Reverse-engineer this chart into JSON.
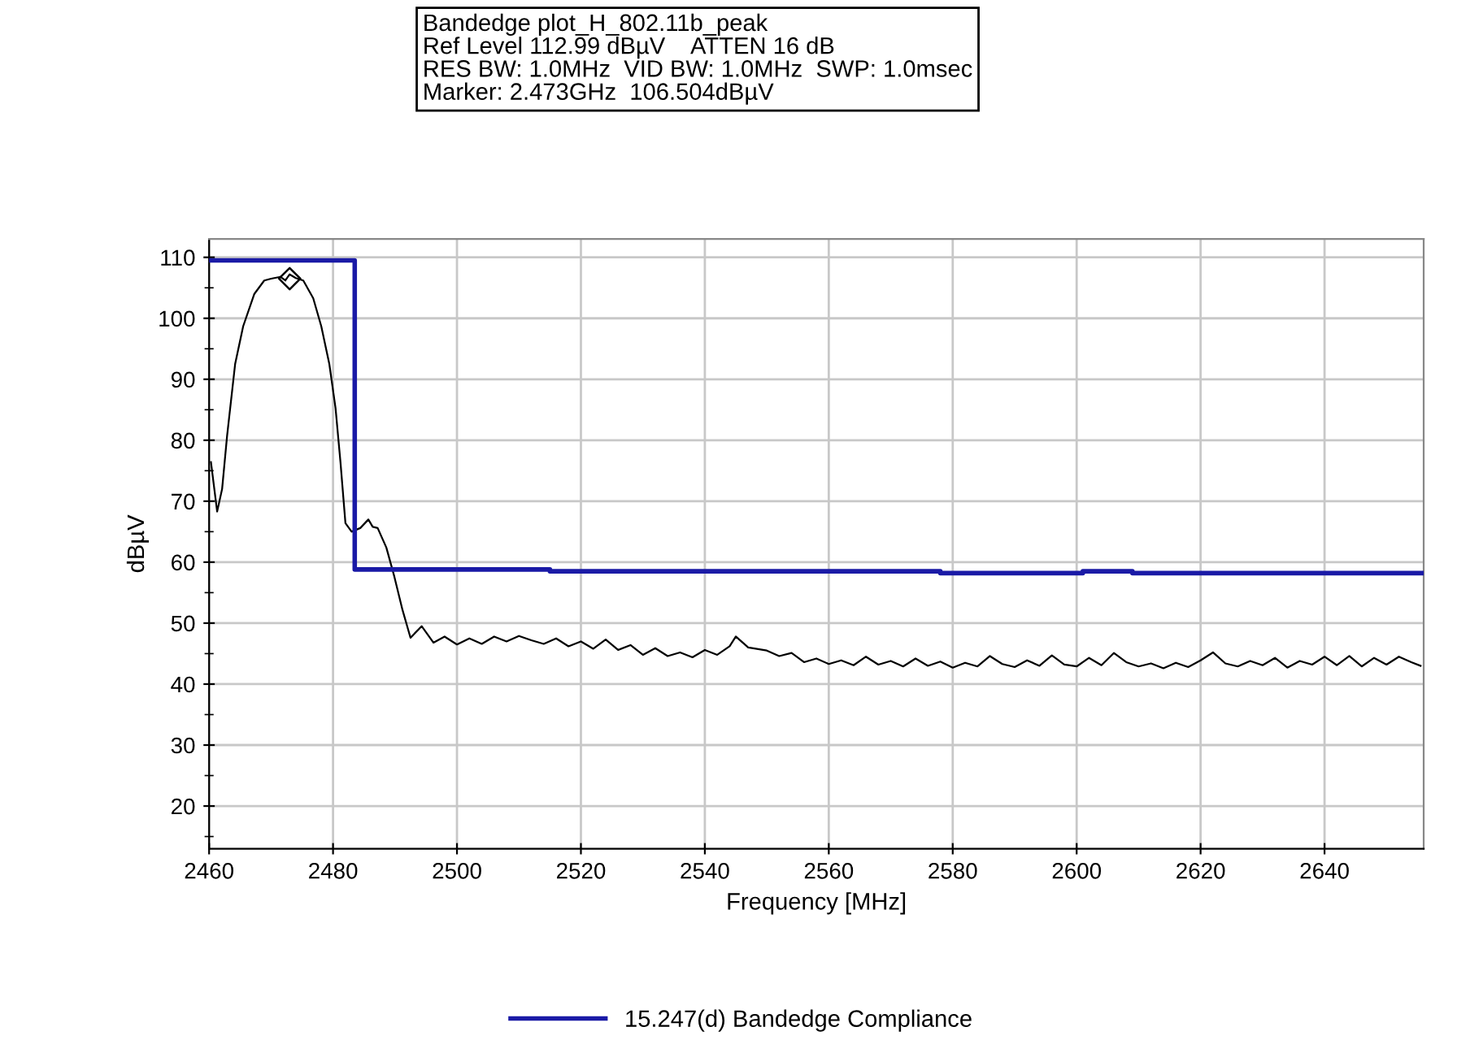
{
  "chart_data": {
    "type": "line",
    "title": "Bandedge plot_H_802.11b_peak\nRef Level 112.99 dBµV    ATTEN 16 dB\nRES BW: 1.0MHz  VID BW: 1.0MHz  SWP: 1.0msec\nMarker: 2.473GHz  106.504dBµV",
    "xlabel": "Frequency [MHz]",
    "ylabel": "dBµV",
    "xlim": [
      2460,
      2656
    ],
    "ylim": [
      13,
      113
    ],
    "xticks": [
      2460,
      2480,
      2500,
      2520,
      2540,
      2560,
      2580,
      2600,
      2620,
      2640
    ],
    "yticks": [
      {
        "value": 15,
        "label": null
      },
      20,
      {
        "value": 25,
        "label": null
      },
      30,
      {
        "value": 35,
        "label": null
      },
      40,
      {
        "value": 45,
        "label": null
      },
      50,
      {
        "value": 55,
        "label": null
      },
      60,
      {
        "value": 65,
        "label": null
      },
      70,
      {
        "value": 75,
        "label": null
      },
      80,
      {
        "value": 85,
        "label": null
      },
      90,
      {
        "value": 95,
        "label": null
      },
      100,
      {
        "value": 105,
        "label": null
      },
      110
    ],
    "grid": true,
    "legend": "bottom",
    "series": [
      {
        "color": "#000000",
        "x": [
          2460.3,
          2461.3,
          2462.1,
          2462.9,
          2464.2,
          2465.5,
          2467.3,
          2468.9,
          2470,
          2471.5,
          2472.3,
          2473,
          2474,
          2475.2,
          2476.8,
          2478.1,
          2479.4,
          2480.4,
          2481.2,
          2482,
          2483,
          2484.4,
          2485.7,
          2486.4,
          2487.2,
          2488.6,
          2489.9,
          2491.2,
          2492.5,
          2494.3,
          2496.2,
          2498,
          2500,
          2502,
          2504,
          2506,
          2508,
          2510,
          2512,
          2514,
          2516,
          2518,
          2520,
          2522,
          2524,
          2526,
          2528,
          2530,
          2532,
          2534,
          2536,
          2538,
          2540,
          2542,
          2544,
          2545,
          2547,
          2550,
          2552,
          2554,
          2556,
          2558,
          2560,
          2562,
          2564,
          2566,
          2568,
          2570,
          2572,
          2574,
          2576,
          2578,
          2580,
          2582,
          2584,
          2586,
          2588,
          2590,
          2592,
          2594,
          2596,
          2598,
          2600,
          2602,
          2604,
          2606,
          2608,
          2610,
          2612,
          2614,
          2616,
          2618,
          2620,
          2622,
          2624,
          2626,
          2628,
          2630,
          2632,
          2634,
          2636,
          2638,
          2640,
          2642,
          2644,
          2646,
          2648,
          2650,
          2652,
          2654,
          2655.5
        ],
        "values": [
          76.4,
          68.3,
          72,
          80.7,
          92.5,
          98.7,
          104,
          106.2,
          106.5,
          106.8,
          106.2,
          107.2,
          106.6,
          106.2,
          103.3,
          98.7,
          92.5,
          85.3,
          76.4,
          66.4,
          65,
          65.6,
          67,
          65.8,
          65.6,
          62.4,
          57.6,
          52.2,
          47.6,
          49.5,
          46.8,
          47.8,
          46.5,
          47.5,
          46.6,
          47.8,
          47,
          47.9,
          47.2,
          46.6,
          47.5,
          46.2,
          47,
          45.8,
          47.3,
          45.6,
          46.4,
          44.8,
          45.9,
          44.6,
          45.2,
          44.4,
          45.6,
          44.8,
          46.2,
          47.8,
          46,
          45.5,
          44.6,
          45.1,
          43.6,
          44.2,
          43.3,
          43.9,
          43.1,
          44.5,
          43.2,
          43.8,
          42.9,
          44.2,
          43,
          43.7,
          42.7,
          43.5,
          42.9,
          44.6,
          43.3,
          42.8,
          43.9,
          43,
          44.7,
          43.2,
          42.9,
          44.3,
          43.1,
          45.1,
          43.6,
          42.9,
          43.4,
          42.6,
          43.5,
          42.8,
          43.9,
          45.2,
          43.4,
          42.9,
          43.8,
          43.1,
          44.3,
          42.7,
          43.8,
          43.2,
          44.5,
          43.1,
          44.6,
          42.9,
          44.3,
          43.2,
          44.5,
          43.6,
          43
        ]
      },
      {
        "name": "15.247(d) Bandedge Compliance",
        "color": "#1a1aa6",
        "type": "line",
        "x": [
          2460,
          2483.5,
          2483.5,
          2515,
          2515,
          2578,
          2578,
          2601,
          2601,
          2609,
          2609,
          2656
        ],
        "values": [
          109.5,
          109.5,
          58.8,
          58.8,
          58.5,
          58.5,
          58.2,
          58.2,
          58.5,
          58.5,
          58.2,
          58.2
        ]
      },
      {
        "color": "#000000",
        "type": "scatter",
        "marker": "diamond",
        "x": [
          2473
        ],
        "values": [
          106.5
        ]
      }
    ]
  }
}
